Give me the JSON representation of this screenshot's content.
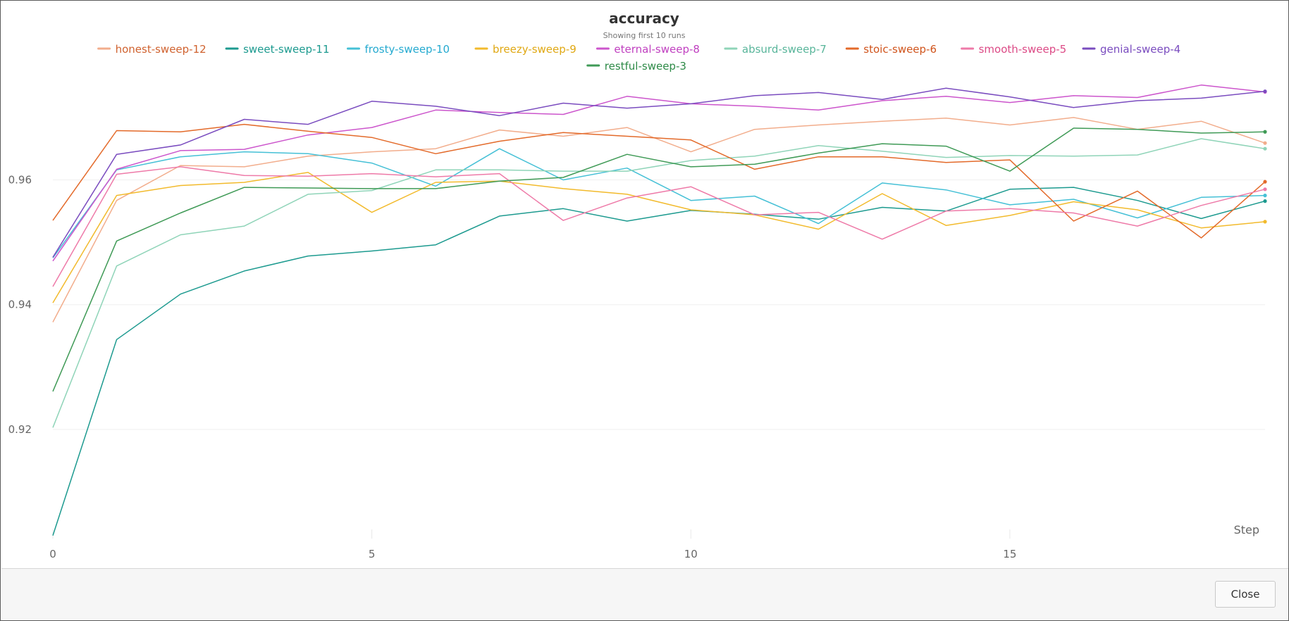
{
  "chart_data": {
    "type": "line",
    "title": "accuracy",
    "subtitle": "Showing first 10 runs",
    "xlabel": "Step",
    "ylabel": "",
    "xlim": [
      0,
      19
    ],
    "ylim": [
      0.9025,
      0.978
    ],
    "x_ticks": [
      0,
      5,
      10,
      15
    ],
    "y_ticks": [
      0.92,
      0.94,
      0.96
    ],
    "x_tick_labels": [
      "0",
      "5",
      "10",
      "15"
    ],
    "y_tick_labels": [
      "0.92",
      "0.94",
      "0.96"
    ],
    "grid": true,
    "legend_position": "top",
    "x": [
      0,
      1,
      2,
      3,
      4,
      5,
      6,
      7,
      8,
      9,
      10,
      11,
      12,
      13,
      14,
      15,
      16,
      17,
      18,
      19
    ],
    "series": [
      {
        "name": "honest-sweep-12",
        "color": "#f2ad8c",
        "text_color": "#d0622f",
        "values": [
          0.9372,
          0.9567,
          0.9623,
          0.9621,
          0.9638,
          0.9645,
          0.965,
          0.968,
          0.967,
          0.9684,
          0.9645,
          0.9681,
          0.9688,
          0.9694,
          0.9699,
          0.9688,
          0.97,
          0.9681,
          0.9694,
          0.9659
        ]
      },
      {
        "name": "sweet-sweep-11",
        "color": "#1c9a8f",
        "text_color": "#1c9a8f",
        "values": [
          0.903,
          0.9344,
          0.9417,
          0.9454,
          0.9478,
          0.9486,
          0.9496,
          0.9542,
          0.9554,
          0.9534,
          0.9551,
          0.9545,
          0.9537,
          0.9556,
          0.955,
          0.9585,
          0.9588,
          0.9567,
          0.9538,
          0.9566
        ]
      },
      {
        "name": "frosty-sweep-10",
        "color": "#45c0d6",
        "text_color": "#25aad0",
        "values": [
          0.9475,
          0.9616,
          0.9637,
          0.9645,
          0.9642,
          0.9627,
          0.959,
          0.965,
          0.96,
          0.9619,
          0.9567,
          0.9574,
          0.953,
          0.9595,
          0.9584,
          0.956,
          0.9569,
          0.9539,
          0.9572,
          0.9575
        ]
      },
      {
        "name": "breezy-sweep-9",
        "color": "#f2ba2c",
        "text_color": "#e0a813",
        "values": [
          0.9403,
          0.9575,
          0.9591,
          0.9596,
          0.9612,
          0.9548,
          0.9596,
          0.9598,
          0.9586,
          0.9577,
          0.9552,
          0.9544,
          0.9521,
          0.9578,
          0.9527,
          0.9543,
          0.9565,
          0.9552,
          0.9523,
          0.9533
        ]
      },
      {
        "name": "eternal-sweep-8",
        "color": "#cc55cc",
        "text_color": "#c040c0",
        "values": [
          0.947,
          0.9617,
          0.9647,
          0.9649,
          0.9672,
          0.9684,
          0.9712,
          0.9708,
          0.9705,
          0.9734,
          0.9722,
          0.9718,
          0.9712,
          0.9727,
          0.9734,
          0.9724,
          0.9735,
          0.9732,
          0.9752,
          0.9741
        ]
      },
      {
        "name": "absurd-sweep-7",
        "color": "#8fd4b8",
        "text_color": "#58b59a",
        "values": [
          0.9203,
          0.9462,
          0.9512,
          0.9526,
          0.9577,
          0.9583,
          0.9616,
          0.9616,
          0.9614,
          0.9614,
          0.9631,
          0.9638,
          0.9655,
          0.9646,
          0.9636,
          0.9639,
          0.9638,
          0.964,
          0.9666,
          0.965
        ]
      },
      {
        "name": "stoic-sweep-6",
        "color": "#e36a2a",
        "text_color": "#d0541c",
        "values": [
          0.9535,
          0.9679,
          0.9677,
          0.9689,
          0.9678,
          0.9668,
          0.9642,
          0.9662,
          0.9676,
          0.967,
          0.9664,
          0.9617,
          0.9637,
          0.9637,
          0.9628,
          0.9632,
          0.9534,
          0.9582,
          0.9507,
          0.9597
        ]
      },
      {
        "name": "smooth-sweep-5",
        "color": "#ee7aa8",
        "text_color": "#dc4a86",
        "values": [
          0.9429,
          0.9609,
          0.9621,
          0.9607,
          0.9606,
          0.961,
          0.9605,
          0.961,
          0.9535,
          0.9571,
          0.9589,
          0.9544,
          0.9548,
          0.9505,
          0.955,
          0.9554,
          0.9547,
          0.9526,
          0.9559,
          0.9585
        ]
      },
      {
        "name": "genial-sweep-4",
        "color": "#7a4cbf",
        "text_color": "#7a4cbf",
        "values": [
          0.9476,
          0.9641,
          0.9656,
          0.9697,
          0.9689,
          0.9726,
          0.9718,
          0.9703,
          0.9723,
          0.9715,
          0.9722,
          0.9735,
          0.974,
          0.9729,
          0.9747,
          0.9733,
          0.9716,
          0.9727,
          0.9731,
          0.9742
        ]
      },
      {
        "name": "restful-sweep-3",
        "color": "#3f9a56",
        "text_color": "#2d8a47",
        "values": [
          0.9261,
          0.9502,
          0.9547,
          0.9588,
          0.9587,
          0.9586,
          0.9586,
          0.9598,
          0.9604,
          0.9641,
          0.9621,
          0.9625,
          0.9643,
          0.9658,
          0.9654,
          0.9614,
          0.9683,
          0.9681,
          0.9675,
          0.9677
        ]
      }
    ]
  },
  "footer": {
    "close_label": "Close"
  }
}
